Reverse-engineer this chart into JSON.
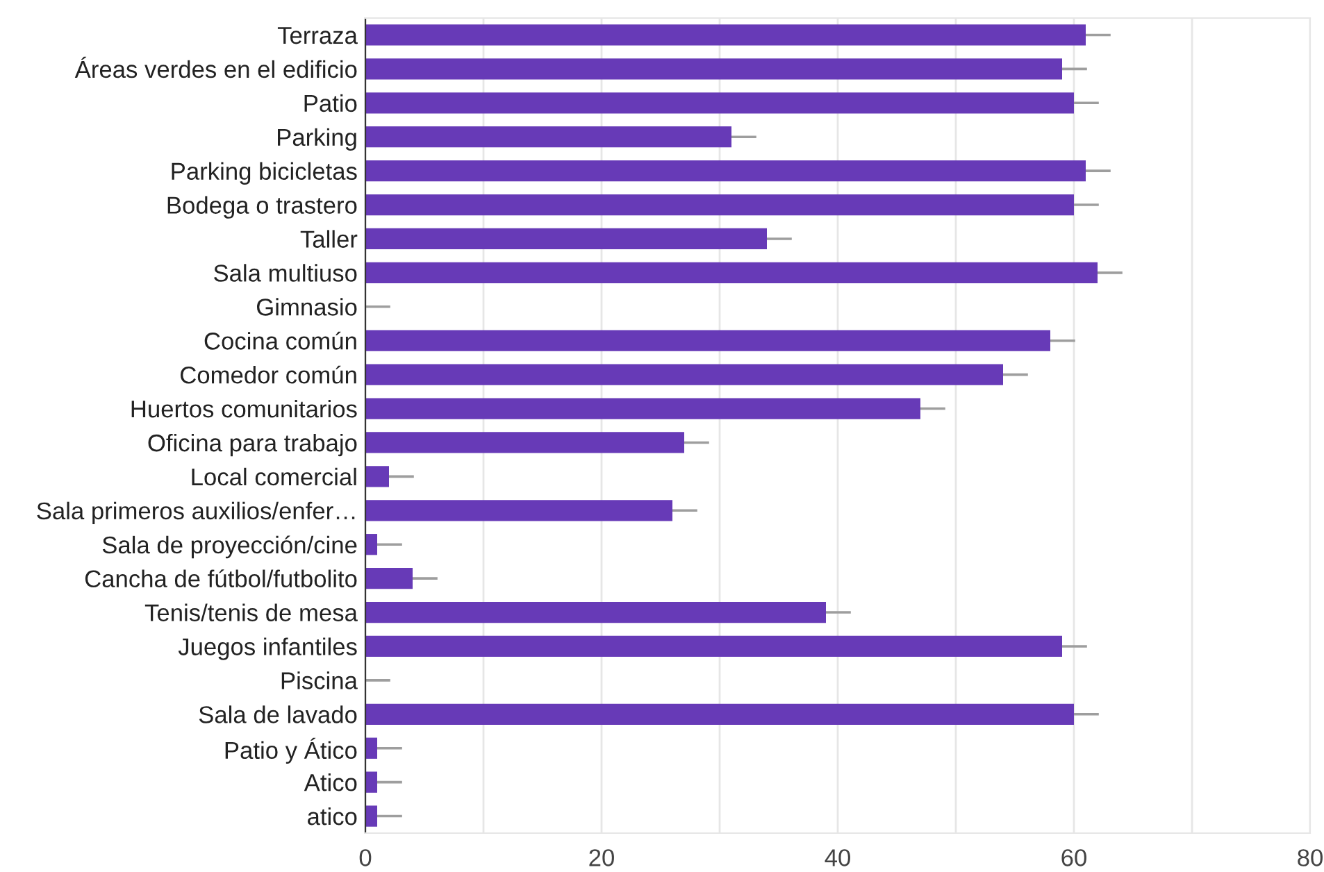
{
  "chart_data": {
    "type": "bar",
    "orientation": "horizontal",
    "categories": [
      "Terraza",
      "Áreas verdes en el edificio",
      "Patio",
      "Parking",
      "Parking bicicletas",
      "Bodega o trastero",
      "Taller",
      "Sala multiuso",
      "Gimnasio",
      "Cocina común",
      "Comedor común",
      "Huertos comunitarios",
      "Oficina para trabajo",
      "Local comercial",
      "Sala primeros auxilios/enfer…",
      "Sala de proyección/cine",
      "Cancha de fútbol/futbolito",
      "Tenis/tenis de mesa",
      "Juegos infantiles",
      "Piscina",
      "Sala de lavado",
      "Patio y Ático",
      "Atico",
      "atico"
    ],
    "values": [
      61,
      59,
      60,
      31,
      61,
      60,
      34,
      62,
      0,
      58,
      54,
      47,
      27,
      2,
      26,
      1,
      4,
      39,
      59,
      0,
      60,
      1,
      1,
      1
    ],
    "errors": [
      [
        61,
        63
      ],
      [
        59,
        61
      ],
      [
        60,
        62
      ],
      [
        31,
        33
      ],
      [
        61,
        63
      ],
      [
        60,
        62
      ],
      [
        34,
        36
      ],
      [
        62,
        64
      ],
      [
        0,
        2
      ],
      [
        58,
        60
      ],
      [
        54,
        56
      ],
      [
        47,
        49
      ],
      [
        27,
        29
      ],
      [
        2,
        4
      ],
      [
        26,
        28
      ],
      [
        1,
        3
      ],
      [
        4,
        6
      ],
      [
        39,
        41
      ],
      [
        59,
        61
      ],
      [
        0,
        2
      ],
      [
        60,
        62
      ],
      [
        1,
        3
      ],
      [
        1,
        3
      ],
      [
        1,
        3
      ]
    ],
    "color": "#673ab7",
    "xlim": [
      0,
      80
    ],
    "xticks": [
      0,
      {
        "value": 10,
        "label": null
      },
      20,
      {
        "value": 30,
        "label": null
      },
      40,
      {
        "value": 50,
        "label": null
      },
      60,
      {
        "value": 70,
        "label": null
      },
      80
    ],
    "grid": "x"
  }
}
